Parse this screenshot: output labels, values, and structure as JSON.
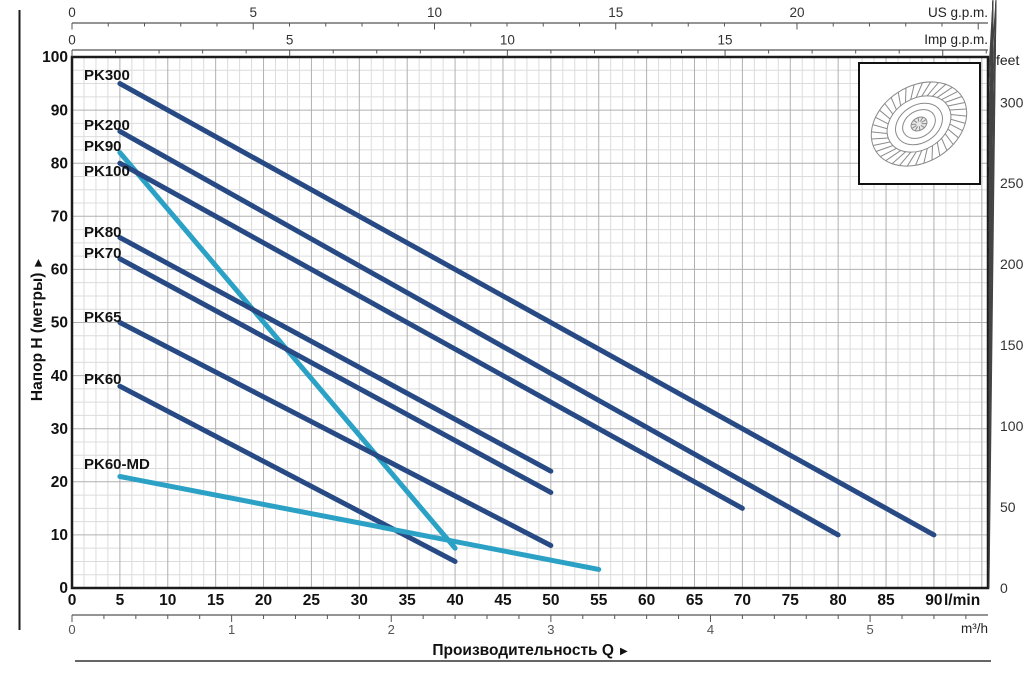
{
  "labels": {
    "arrow_right": "▶"
  },
  "chart_data": {
    "type": "line",
    "title": "",
    "xlabel": "Производительность Q",
    "ylabel": "Напор H (метры)",
    "x_unit": "l/min",
    "y_unit": "m",
    "x_range_lmin": [
      0,
      95.6
    ],
    "y_range_m": [
      0,
      100
    ],
    "grid": {
      "on": true,
      "major_x_lmin": 5,
      "minor_x_lmin": 1.25,
      "major_y_m": 10,
      "minor_y_m": 2.5
    },
    "legend_position": "labels-at-curve-start",
    "axes": {
      "us_gpm": {
        "label": "US g.p.m.",
        "lmin_per_unit": 3.785,
        "major_ticks": [
          0,
          5,
          10,
          15,
          20
        ],
        "minor_step": 1
      },
      "imp_gpm": {
        "label": "Imp g.p.m.",
        "lmin_per_unit": 4.546,
        "major_ticks": [
          0,
          5,
          10,
          15
        ],
        "minor_step": 1
      },
      "lmin": {
        "label": "l/min",
        "major_ticks": [
          0,
          5,
          10,
          15,
          20,
          25,
          30,
          35,
          40,
          45,
          50,
          55,
          60,
          65,
          70,
          75,
          80,
          85,
          90
        ]
      },
      "m3h": {
        "label": "m³/h",
        "lmin_per_unit": 16.667,
        "major_ticks": [
          0,
          1,
          2,
          3,
          4,
          5
        ],
        "minor_step": 0.2
      },
      "head_m": {
        "label": "Напор H (метры)",
        "major_ticks": [
          100,
          90,
          80,
          70,
          60,
          50,
          40,
          30,
          20,
          10,
          0
        ]
      },
      "feet": {
        "label": "feet",
        "m_per_unit": 0.3048,
        "major_ticks": [
          300,
          250,
          200,
          150,
          100,
          50,
          0
        ],
        "minor_step": 10
      }
    },
    "series": [
      {
        "name": "PK300",
        "color_key": "navy",
        "points_lmin_m": [
          [
            5,
            95
          ],
          [
            90,
            10
          ]
        ]
      },
      {
        "name": "PK200",
        "color_key": "navy",
        "points_lmin_m": [
          [
            5,
            86
          ],
          [
            80,
            10
          ]
        ]
      },
      {
        "name": "PK90",
        "color_key": "cyan",
        "points_lmin_m": [
          [
            5,
            82
          ],
          [
            40,
            7.5
          ]
        ]
      },
      {
        "name": "PK100",
        "color_key": "navy",
        "points_lmin_m": [
          [
            5,
            80
          ],
          [
            70,
            15
          ]
        ]
      },
      {
        "name": "PK80",
        "color_key": "navy",
        "points_lmin_m": [
          [
            5,
            66
          ],
          [
            50,
            22
          ]
        ]
      },
      {
        "name": "PK70",
        "color_key": "navy",
        "points_lmin_m": [
          [
            5,
            62
          ],
          [
            50,
            18
          ]
        ]
      },
      {
        "name": "PK65",
        "color_key": "navy",
        "points_lmin_m": [
          [
            5,
            50
          ],
          [
            50,
            8
          ]
        ]
      },
      {
        "name": "PK60",
        "color_key": "navy",
        "points_lmin_m": [
          [
            5,
            38
          ],
          [
            40,
            5
          ]
        ]
      },
      {
        "name": "PK60-MD",
        "color_key": "cyan",
        "points_lmin_m": [
          [
            5,
            21
          ],
          [
            55,
            3.5
          ]
        ]
      }
    ],
    "colors": {
      "navy": "#274a85",
      "cyan": "#2ba1c5"
    },
    "inset": {
      "description": "impeller line drawing"
    }
  }
}
